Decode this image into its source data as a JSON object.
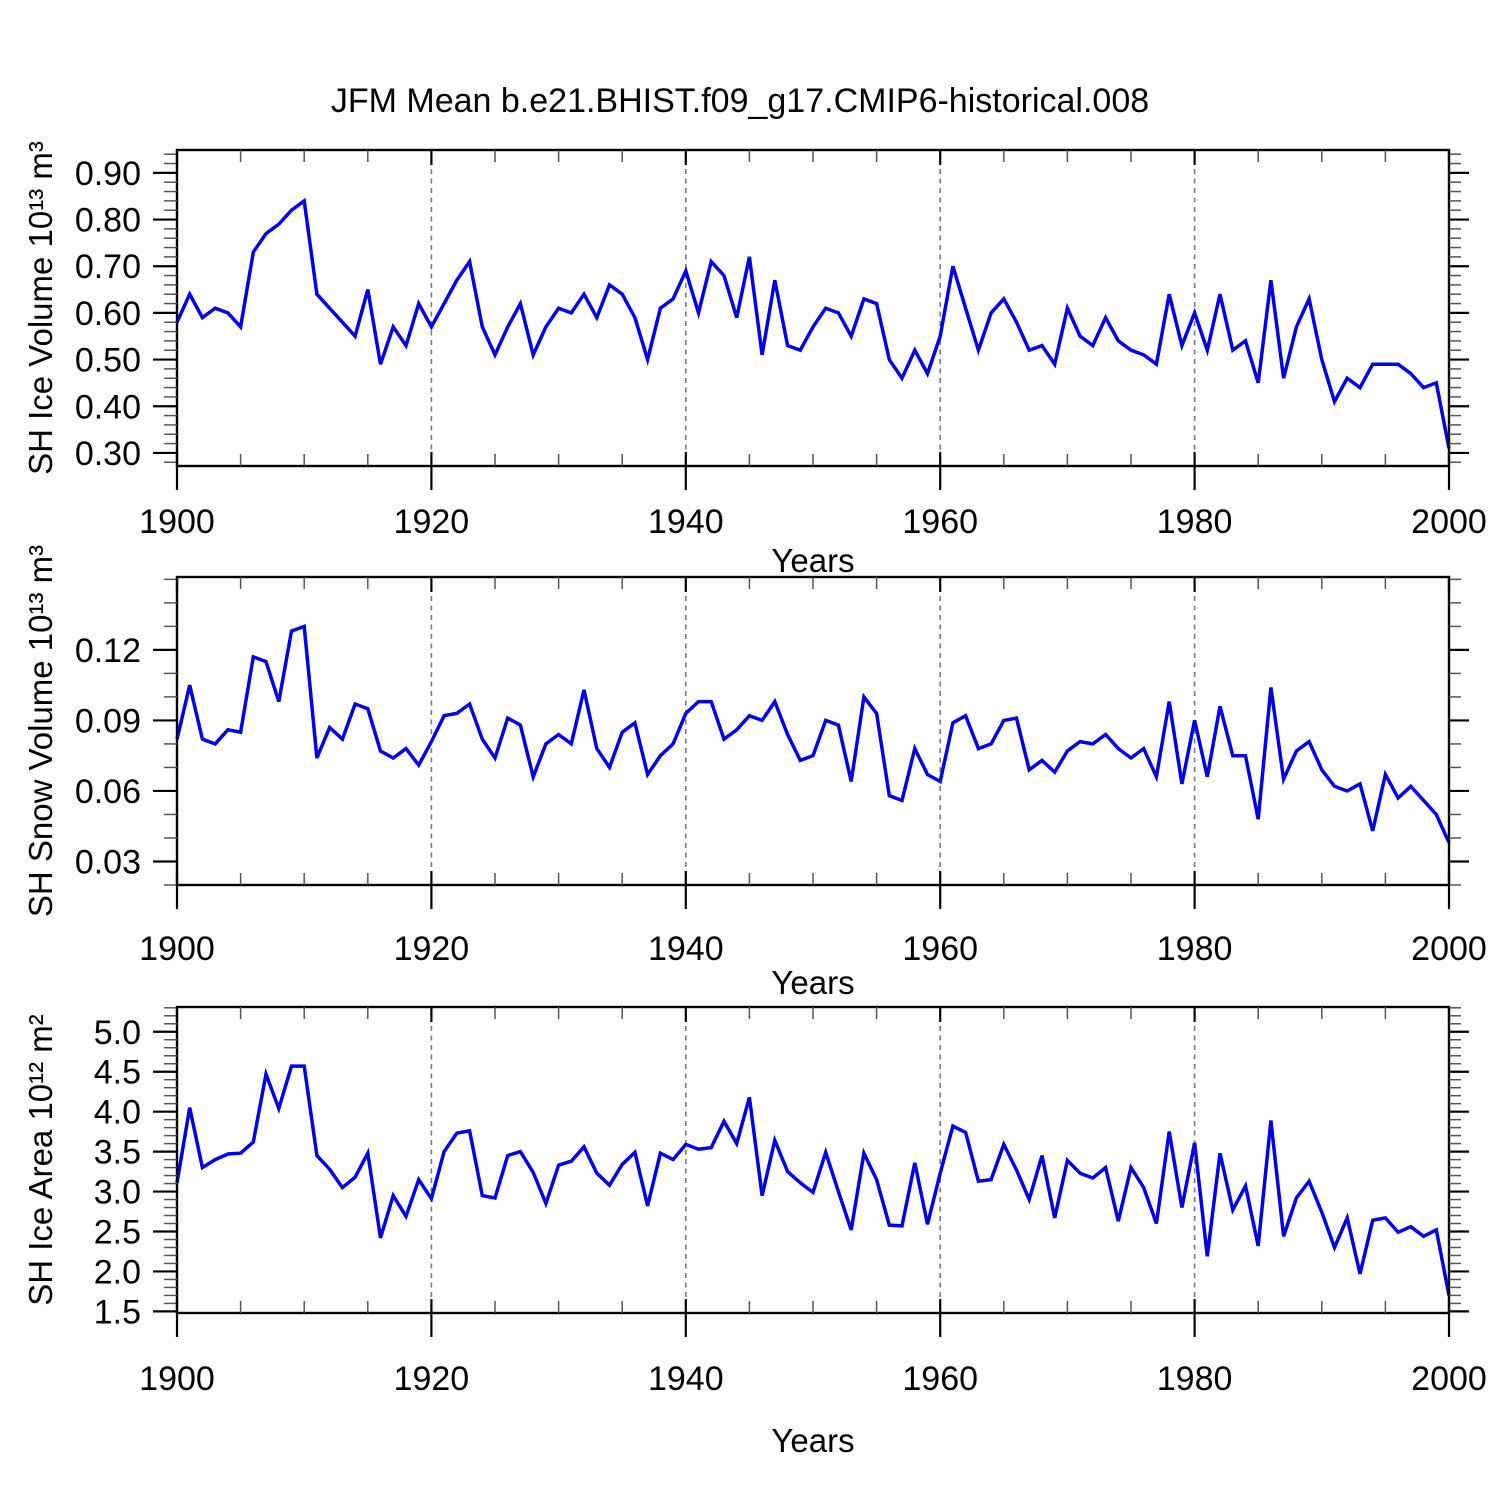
{
  "page": {
    "title": "JFM Mean b.e21.BHIST.f09_g17.CMIP6-historical.008"
  },
  "chart_data": {
    "type": "line",
    "title": "JFM Mean b.e21.BHIST.f09_g17.CMIP6-historical.008",
    "line_color": "#0000e6",
    "grid_color": "#7a7a7a",
    "years": [
      1900,
      1901,
      1902,
      1903,
      1904,
      1905,
      1906,
      1907,
      1908,
      1909,
      1910,
      1911,
      1912,
      1913,
      1914,
      1915,
      1916,
      1917,
      1918,
      1919,
      1920,
      1921,
      1922,
      1923,
      1924,
      1925,
      1926,
      1927,
      1928,
      1929,
      1930,
      1931,
      1932,
      1933,
      1934,
      1935,
      1936,
      1937,
      1938,
      1939,
      1940,
      1941,
      1942,
      1943,
      1944,
      1945,
      1946,
      1947,
      1948,
      1949,
      1950,
      1951,
      1952,
      1953,
      1954,
      1955,
      1956,
      1957,
      1958,
      1959,
      1960,
      1961,
      1962,
      1963,
      1964,
      1965,
      1966,
      1967,
      1968,
      1969,
      1970,
      1971,
      1972,
      1973,
      1974,
      1975,
      1976,
      1977,
      1978,
      1979,
      1980,
      1981,
      1982,
      1983,
      1984,
      1985,
      1986,
      1987,
      1988,
      1989,
      1990,
      1991,
      1992,
      1993,
      1994,
      1995,
      1996,
      1997,
      1998,
      1999,
      2000
    ],
    "xticks": {
      "values": [
        1900,
        1920,
        1940,
        1960,
        1980,
        2000
      ],
      "labels": [
        "1900",
        "1920",
        "1940",
        "1960",
        "1980",
        "2000"
      ],
      "minor_step": 5
    },
    "grid_years": [
      1920,
      1940,
      1960,
      1980
    ],
    "charts": [
      {
        "name": "sh-ice-volume",
        "ylabel": "SH Ice Volume 10¹³ m³",
        "xlabel": "Years",
        "ylim": [
          0.272,
          0.949
        ],
        "yticks": {
          "values": [
            0.3,
            0.4,
            0.5,
            0.6,
            0.7,
            0.8,
            0.9
          ],
          "labels": [
            "0.30",
            "0.40",
            "0.50",
            "0.60",
            "0.70",
            "0.80",
            "0.90"
          ],
          "minor_step": 0.02
        },
        "values": [
          0.58,
          0.64,
          0.59,
          0.61,
          0.6,
          0.57,
          0.73,
          0.77,
          0.79,
          0.82,
          0.84,
          0.64,
          0.61,
          0.58,
          0.55,
          0.65,
          0.49,
          0.57,
          0.53,
          0.62,
          0.57,
          0.62,
          0.67,
          0.71,
          0.57,
          0.51,
          0.57,
          0.62,
          0.51,
          0.57,
          0.61,
          0.6,
          0.64,
          0.59,
          0.66,
          0.64,
          0.59,
          0.5,
          0.61,
          0.63,
          0.69,
          0.6,
          0.71,
          0.68,
          0.59,
          0.72,
          0.51,
          0.67,
          0.53,
          0.52,
          0.57,
          0.61,
          0.6,
          0.55,
          0.63,
          0.62,
          0.5,
          0.46,
          0.52,
          0.47,
          0.55,
          0.7,
          0.61,
          0.52,
          0.6,
          0.63,
          0.58,
          0.52,
          0.53,
          0.49,
          0.61,
          0.55,
          0.53,
          0.59,
          0.54,
          0.52,
          0.51,
          0.49,
          0.64,
          0.53,
          0.6,
          0.52,
          0.64,
          0.52,
          0.54,
          0.45,
          0.67,
          0.46,
          0.57,
          0.63,
          0.5,
          0.41,
          0.46,
          0.44,
          0.49,
          0.49,
          0.49,
          0.47,
          0.44,
          0.45,
          0.31
        ]
      },
      {
        "name": "sh-snow-volume",
        "ylabel": "SH Snow Volume 10¹³ m³",
        "xlabel": "Years",
        "ylim": [
          0.02,
          0.151
        ],
        "yticks": {
          "values": [
            0.03,
            0.06,
            0.09,
            0.12
          ],
          "labels": [
            "0.03",
            "0.06",
            "0.09",
            "0.12"
          ],
          "minor_step": 0.01
        },
        "values": [
          0.082,
          0.105,
          0.082,
          0.08,
          0.086,
          0.085,
          0.117,
          0.115,
          0.098,
          0.128,
          0.13,
          0.074,
          0.087,
          0.082,
          0.097,
          0.095,
          0.077,
          0.074,
          0.078,
          0.071,
          0.081,
          0.092,
          0.093,
          0.097,
          0.082,
          0.074,
          0.091,
          0.088,
          0.066,
          0.08,
          0.084,
          0.08,
          0.103,
          0.078,
          0.07,
          0.085,
          0.089,
          0.067,
          0.075,
          0.08,
          0.093,
          0.098,
          0.098,
          0.082,
          0.086,
          0.092,
          0.09,
          0.098,
          0.084,
          0.073,
          0.075,
          0.09,
          0.088,
          0.064,
          0.1,
          0.093,
          0.058,
          0.056,
          0.078,
          0.067,
          0.064,
          0.089,
          0.092,
          0.078,
          0.08,
          0.09,
          0.091,
          0.069,
          0.073,
          0.068,
          0.077,
          0.081,
          0.08,
          0.084,
          0.078,
          0.074,
          0.078,
          0.066,
          0.098,
          0.063,
          0.09,
          0.066,
          0.096,
          0.075,
          0.075,
          0.048,
          0.104,
          0.065,
          0.077,
          0.081,
          0.069,
          0.062,
          0.06,
          0.063,
          0.043,
          0.067,
          0.057,
          0.062,
          0.056,
          0.05,
          0.038
        ]
      },
      {
        "name": "sh-ice-area",
        "ylabel": "SH Ice Area 10¹² m²",
        "xlabel": "Years",
        "ylim": [
          1.48,
          5.31
        ],
        "yticks": {
          "values": [
            1.5,
            2.0,
            2.5,
            3.0,
            3.5,
            4.0,
            4.5,
            5.0
          ],
          "labels": [
            "1.5",
            "2.0",
            "2.5",
            "3.0",
            "3.5",
            "4.0",
            "4.5",
            "5.0"
          ],
          "minor_step": 0.1
        },
        "values": [
          3.11,
          4.05,
          3.3,
          3.4,
          3.47,
          3.48,
          3.62,
          4.47,
          4.04,
          4.57,
          4.57,
          3.45,
          3.28,
          3.05,
          3.18,
          3.48,
          2.42,
          2.95,
          2.69,
          3.15,
          2.91,
          3.5,
          3.73,
          3.76,
          2.95,
          2.92,
          3.45,
          3.5,
          3.24,
          2.85,
          3.33,
          3.38,
          3.56,
          3.23,
          3.08,
          3.34,
          3.49,
          2.82,
          3.48,
          3.4,
          3.59,
          3.53,
          3.55,
          3.88,
          3.6,
          4.18,
          2.95,
          3.64,
          3.25,
          3.11,
          2.99,
          3.49,
          3.0,
          2.52,
          3.48,
          3.15,
          2.58,
          2.57,
          3.36,
          2.59,
          3.23,
          3.82,
          3.74,
          3.13,
          3.15,
          3.59,
          3.27,
          2.9,
          3.45,
          2.67,
          3.39,
          3.23,
          3.17,
          3.3,
          2.63,
          3.3,
          3.05,
          2.6,
          3.75,
          2.8,
          3.61,
          2.19,
          3.48,
          2.77,
          3.07,
          2.32,
          3.89,
          2.44,
          2.92,
          3.13,
          2.74,
          2.3,
          2.67,
          1.97,
          2.64,
          2.67,
          2.49,
          2.56,
          2.44,
          2.52,
          1.7
        ]
      }
    ]
  }
}
